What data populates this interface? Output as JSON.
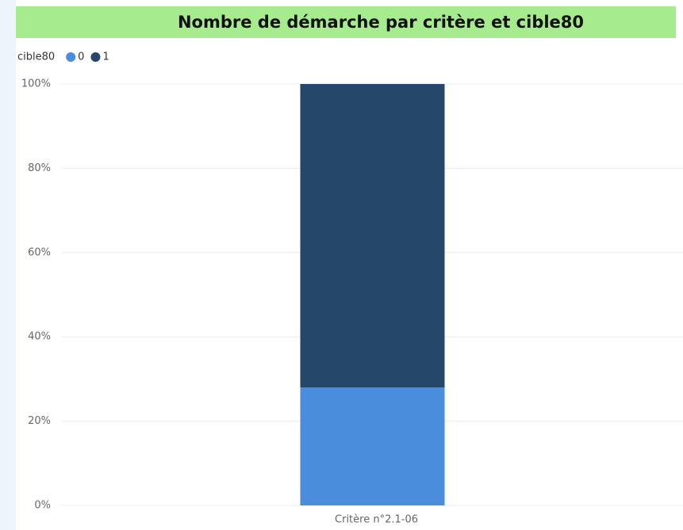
{
  "chart_data": {
    "type": "stacked_bar_100",
    "title": "Nombre de démarche par critère et cible80",
    "legend_title": "cible80",
    "categories": [
      "Critère n°2.1-06"
    ],
    "series": [
      {
        "name": "0",
        "color": "#4a8ddc",
        "values": [
          28
        ]
      },
      {
        "name": "1",
        "color": "#25476a",
        "values": [
          72
        ]
      }
    ],
    "ylim": [
      0,
      100
    ],
    "yticks": [
      {
        "value": 0,
        "label": "0%"
      },
      {
        "value": 20,
        "label": "20%"
      },
      {
        "value": 40,
        "label": "40%"
      },
      {
        "value": 60,
        "label": "60%"
      },
      {
        "value": 80,
        "label": "80%"
      },
      {
        "value": 100,
        "label": "100%"
      }
    ],
    "grid": true,
    "legend": "top-left"
  }
}
